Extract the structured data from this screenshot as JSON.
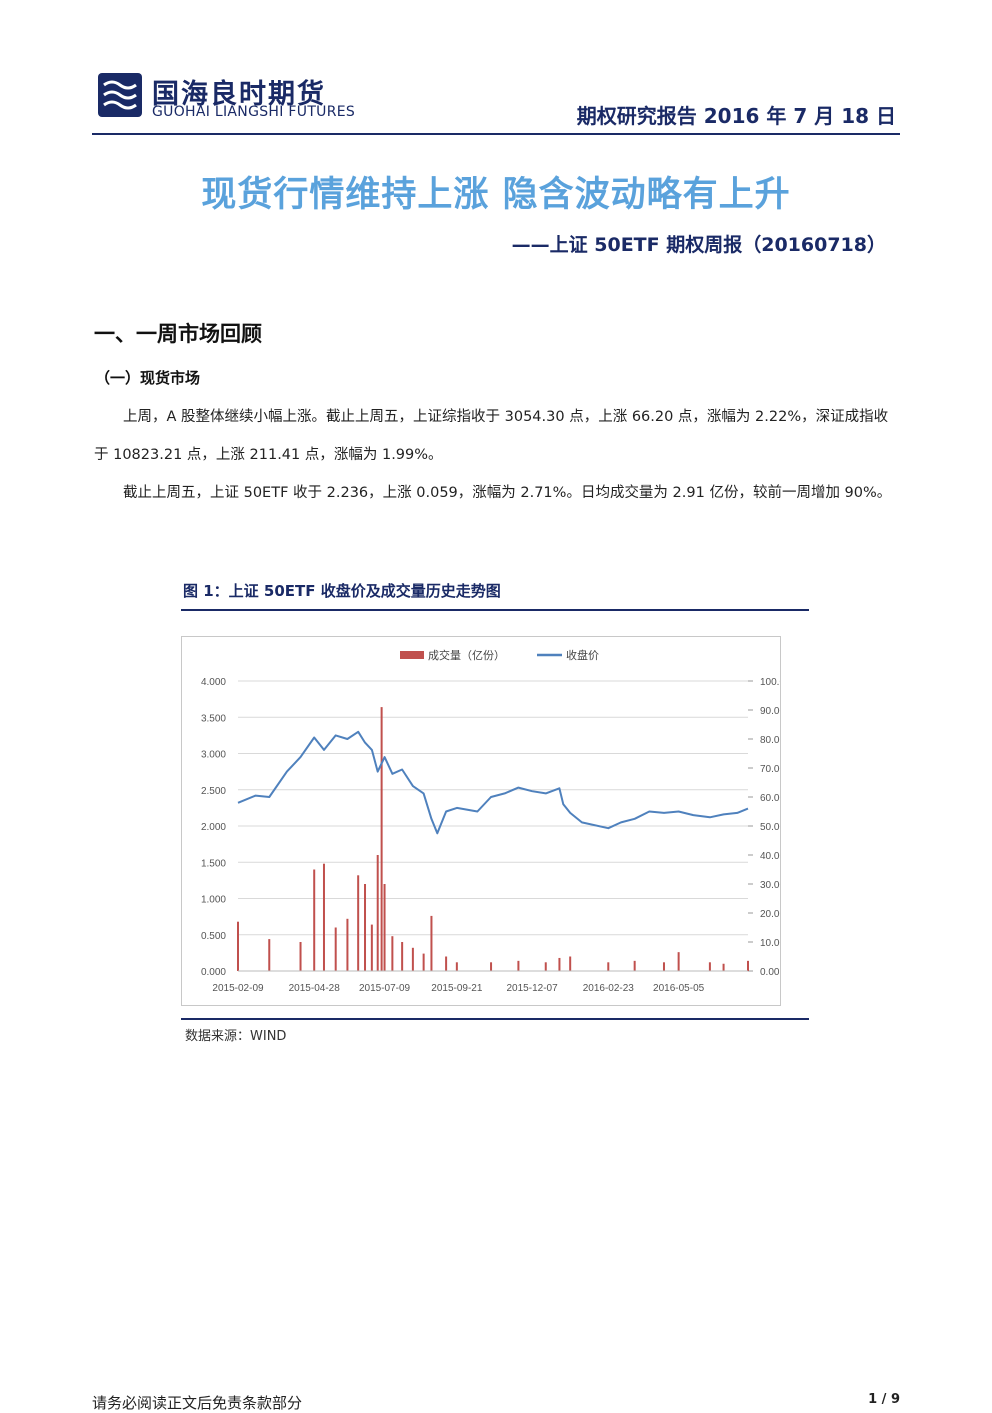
{
  "header": {
    "brand_cn": "国海良时期货",
    "brand_en": "GUOHAI LIANGSHI FUTURES",
    "report_tag": "期权研究报告 2016 年 7 月 18 日"
  },
  "title": "现货行情维持上涨 隐含波动略有上升",
  "subtitle": "——上证 50ETF 期权周报（20160718）",
  "section": {
    "heading": "一、一周市场回顾",
    "subheading": "（一）现货市场",
    "paragraphs": [
      "上周，A 股整体继续小幅上涨。截止上周五，上证综指收于 3054.30 点，上涨 66.20 点，涨幅为 2.22%，深证成指收于 10823.21 点，上涨 211.41 点，涨幅为 1.99%。",
      "截止上周五，上证 50ETF 收于 2.236，上涨 0.059，涨幅为 2.71%。日均成交量为 2.91 亿份，较前一周增加 90%。"
    ]
  },
  "figure": {
    "caption": "图 1：上证 50ETF 收盘价及成交量历史走势图",
    "source": "数据来源：WIND"
  },
  "chart_data": {
    "type": "line",
    "legend": [
      "成交量（亿份）",
      "收盘价"
    ],
    "legend_position": "top",
    "grid": true,
    "x_tick_labels": [
      "2015-02-09",
      "2015-04-28",
      "2015-07-09",
      "2015-09-21",
      "2015-12-07",
      "2016-02-23",
      "2016-05-05"
    ],
    "y_left_ticks": [
      "0.000",
      "0.500",
      "1.000",
      "1.500",
      "2.000",
      "2.500",
      "3.000",
      "3.500",
      "4.000"
    ],
    "y_right_ticks": [
      "0.00",
      "10.00",
      "20.00",
      "30.00",
      "40.00",
      "50.00",
      "60.00",
      "70.00",
      "80.00",
      "90.00",
      "100.00"
    ],
    "y_left_lim": [
      0,
      4
    ],
    "y_right_lim": [
      0,
      100
    ],
    "colors": {
      "volume": "#c0504d",
      "price": "#4f81bd"
    },
    "series": [
      {
        "name": "收盘价",
        "axis": "left",
        "x": [
          "2015-02-09",
          "2015-02-27",
          "2015-03-13",
          "2015-03-31",
          "2015-04-14",
          "2015-04-28",
          "2015-05-08",
          "2015-05-20",
          "2015-06-01",
          "2015-06-12",
          "2015-06-19",
          "2015-06-26",
          "2015-07-02",
          "2015-07-09",
          "2015-07-17",
          "2015-07-27",
          "2015-08-07",
          "2015-08-18",
          "2015-08-26",
          "2015-09-01",
          "2015-09-10",
          "2015-09-21",
          "2015-10-12",
          "2015-10-26",
          "2015-11-09",
          "2015-11-23",
          "2015-12-07",
          "2015-12-21",
          "2016-01-04",
          "2016-01-08",
          "2016-01-15",
          "2016-01-27",
          "2016-02-23",
          "2016-03-07",
          "2016-03-21",
          "2016-04-05",
          "2016-04-20",
          "2016-05-05",
          "2016-05-20",
          "2016-06-06",
          "2016-06-20",
          "2016-07-04",
          "2016-07-15"
        ],
        "y": [
          2.32,
          2.42,
          2.4,
          2.75,
          2.95,
          3.22,
          3.05,
          3.25,
          3.2,
          3.3,
          3.15,
          3.05,
          2.75,
          2.95,
          2.72,
          2.78,
          2.55,
          2.45,
          2.1,
          1.9,
          2.2,
          2.25,
          2.2,
          2.4,
          2.45,
          2.53,
          2.48,
          2.45,
          2.52,
          2.3,
          2.18,
          2.05,
          1.97,
          2.05,
          2.1,
          2.2,
          2.18,
          2.2,
          2.15,
          2.12,
          2.16,
          2.18,
          2.24
        ]
      },
      {
        "name": "成交量（亿份）",
        "axis": "right",
        "type": "bar",
        "x": [
          "2015-02-09",
          "2015-03-13",
          "2015-04-14",
          "2015-04-28",
          "2015-05-08",
          "2015-05-20",
          "2015-06-01",
          "2015-06-12",
          "2015-06-19",
          "2015-06-26",
          "2015-07-02",
          "2015-07-06",
          "2015-07-09",
          "2015-07-17",
          "2015-07-27",
          "2015-08-07",
          "2015-08-18",
          "2015-08-26",
          "2015-09-10",
          "2015-09-21",
          "2015-10-26",
          "2015-11-23",
          "2015-12-21",
          "2016-01-04",
          "2016-01-15",
          "2016-02-23",
          "2016-03-21",
          "2016-04-20",
          "2016-05-05",
          "2016-06-06",
          "2016-06-20",
          "2016-07-15"
        ],
        "y": [
          17.0,
          11.0,
          10.0,
          35.0,
          37.0,
          15.0,
          18.0,
          33.0,
          30.0,
          16.0,
          40.0,
          91.0,
          30.0,
          12.0,
          10.0,
          8.0,
          6.0,
          19.0,
          5.0,
          3.0,
          3.0,
          3.5,
          3.0,
          4.5,
          5.0,
          3.0,
          3.5,
          3.0,
          6.5,
          3.0,
          2.5,
          3.5
        ]
      }
    ]
  },
  "footer": {
    "disclaimer": "请务必阅读正文后免责条款部分",
    "page": "1 / 9"
  }
}
